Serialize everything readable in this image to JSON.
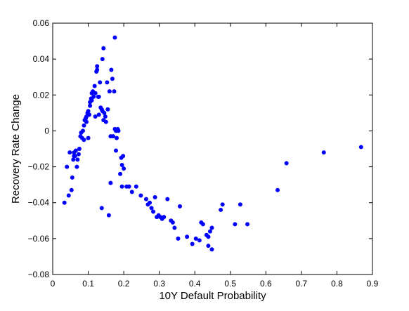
{
  "chart_data": {
    "type": "scatter",
    "title": "",
    "xlabel": "10Y Default Probability",
    "ylabel": "Recovery Rate Change",
    "xlim": [
      0,
      0.9
    ],
    "ylim": [
      -0.08,
      0.06
    ],
    "xticks": [
      0,
      0.1,
      0.2,
      0.3,
      0.4,
      0.5,
      0.6,
      0.7,
      0.8,
      0.9
    ],
    "xtick_labels": [
      "0",
      "0.1",
      "0.2",
      "0.3",
      "0.4",
      "0.5",
      "0.6",
      "0.7",
      "0.8",
      "0.9"
    ],
    "yticks": [
      -0.08,
      -0.06,
      -0.04,
      -0.02,
      0,
      0.02,
      0.04,
      0.06
    ],
    "ytick_labels": [
      "−0.08",
      "−0.06",
      "−0.04",
      "−0.02",
      "0",
      "0.02",
      "0.04",
      "0.06"
    ],
    "grid": false,
    "marker_color": "#0000ff",
    "series": [
      {
        "points": [
          [
            0.033,
            -0.04
          ],
          [
            0.04,
            -0.02
          ],
          [
            0.045,
            -0.036
          ],
          [
            0.048,
            -0.012
          ],
          [
            0.053,
            -0.033
          ],
          [
            0.055,
            -0.026
          ],
          [
            0.058,
            -0.016
          ],
          [
            0.06,
            -0.014
          ],
          [
            0.06,
            -0.012
          ],
          [
            0.063,
            -0.014
          ],
          [
            0.065,
            -0.011
          ],
          [
            0.068,
            -0.02
          ],
          [
            0.07,
            -0.016
          ],
          [
            0.073,
            -0.013
          ],
          [
            0.075,
            -0.01
          ],
          [
            0.078,
            -0.003
          ],
          [
            0.08,
            -0.001
          ],
          [
            0.083,
            -0.004
          ],
          [
            0.085,
            0.0
          ],
          [
            0.088,
            0.003
          ],
          [
            0.088,
            -0.005
          ],
          [
            0.09,
            0.006
          ],
          [
            0.093,
            0.007
          ],
          [
            0.095,
            0.008
          ],
          [
            0.095,
            0.005
          ],
          [
            0.098,
            0.01
          ],
          [
            0.1,
            0.011
          ],
          [
            0.1,
            -0.004
          ],
          [
            0.103,
            0.009
          ],
          [
            0.105,
            0.014
          ],
          [
            0.105,
            0.016
          ],
          [
            0.108,
            0.018
          ],
          [
            0.11,
            0.017
          ],
          [
            0.11,
            0.021
          ],
          [
            0.113,
            0.022
          ],
          [
            0.115,
            0.019
          ],
          [
            0.118,
            0.025
          ],
          [
            0.12,
            0.021
          ],
          [
            0.12,
            0.008
          ],
          [
            0.123,
            0.033
          ],
          [
            0.125,
            0.036
          ],
          [
            0.125,
            0.034
          ],
          [
            0.128,
            0.019
          ],
          [
            0.13,
            0.019
          ],
          [
            0.13,
            0.009
          ],
          [
            0.133,
            0.027
          ],
          [
            0.135,
            0.013
          ],
          [
            0.138,
            0.012
          ],
          [
            0.14,
            0.04
          ],
          [
            0.14,
            0.011
          ],
          [
            0.143,
            0.046
          ],
          [
            0.143,
            0.006
          ],
          [
            0.145,
            0.01
          ],
          [
            0.148,
            0.008
          ],
          [
            0.15,
            0.005
          ],
          [
            0.153,
            0.027
          ],
          [
            0.155,
            0.012
          ],
          [
            0.158,
            -0.047
          ],
          [
            0.16,
            0.022
          ],
          [
            0.163,
            -0.003
          ],
          [
            0.165,
            0.034
          ],
          [
            0.168,
            0.029
          ],
          [
            0.17,
            -0.003
          ],
          [
            0.173,
            0.022
          ],
          [
            0.175,
            0.052
          ],
          [
            0.175,
            0.001
          ],
          [
            0.178,
            0.0
          ],
          [
            0.18,
            -0.004
          ],
          [
            0.183,
            0.001
          ],
          [
            0.185,
            0.0
          ],
          [
            0.138,
            -0.043
          ],
          [
            0.178,
            -0.011
          ],
          [
            0.163,
            -0.029
          ],
          [
            0.19,
            -0.024
          ],
          [
            0.193,
            -0.015
          ],
          [
            0.195,
            -0.019
          ],
          [
            0.198,
            -0.014
          ],
          [
            0.2,
            -0.021
          ],
          [
            0.195,
            -0.031
          ],
          [
            0.208,
            -0.031
          ],
          [
            0.215,
            -0.031
          ],
          [
            0.223,
            -0.034
          ],
          [
            0.235,
            -0.031
          ],
          [
            0.248,
            -0.036
          ],
          [
            0.263,
            -0.038
          ],
          [
            0.268,
            -0.041
          ],
          [
            0.273,
            -0.04
          ],
          [
            0.278,
            -0.043
          ],
          [
            0.283,
            -0.045
          ],
          [
            0.288,
            -0.037
          ],
          [
            0.293,
            -0.048
          ],
          [
            0.298,
            -0.047
          ],
          [
            0.303,
            -0.048
          ],
          [
            0.308,
            -0.049
          ],
          [
            0.313,
            -0.048
          ],
          [
            0.323,
            -0.038
          ],
          [
            0.333,
            -0.05
          ],
          [
            0.343,
            -0.054
          ],
          [
            0.338,
            -0.051
          ],
          [
            0.353,
            -0.06
          ],
          [
            0.358,
            -0.042
          ],
          [
            0.378,
            -0.059
          ],
          [
            0.393,
            -0.063
          ],
          [
            0.403,
            -0.06
          ],
          [
            0.413,
            -0.061
          ],
          [
            0.418,
            -0.051
          ],
          [
            0.423,
            -0.052
          ],
          [
            0.433,
            -0.058
          ],
          [
            0.438,
            -0.059
          ],
          [
            0.438,
            -0.064
          ],
          [
            0.443,
            -0.056
          ],
          [
            0.448,
            -0.054
          ],
          [
            0.448,
            -0.066
          ],
          [
            0.473,
            -0.044
          ],
          [
            0.478,
            -0.041
          ],
          [
            0.513,
            -0.052
          ],
          [
            0.528,
            -0.041
          ],
          [
            0.548,
            -0.052
          ],
          [
            0.633,
            -0.033
          ],
          [
            0.658,
            -0.018
          ],
          [
            0.763,
            -0.012
          ],
          [
            0.868,
            -0.009
          ]
        ]
      }
    ]
  }
}
